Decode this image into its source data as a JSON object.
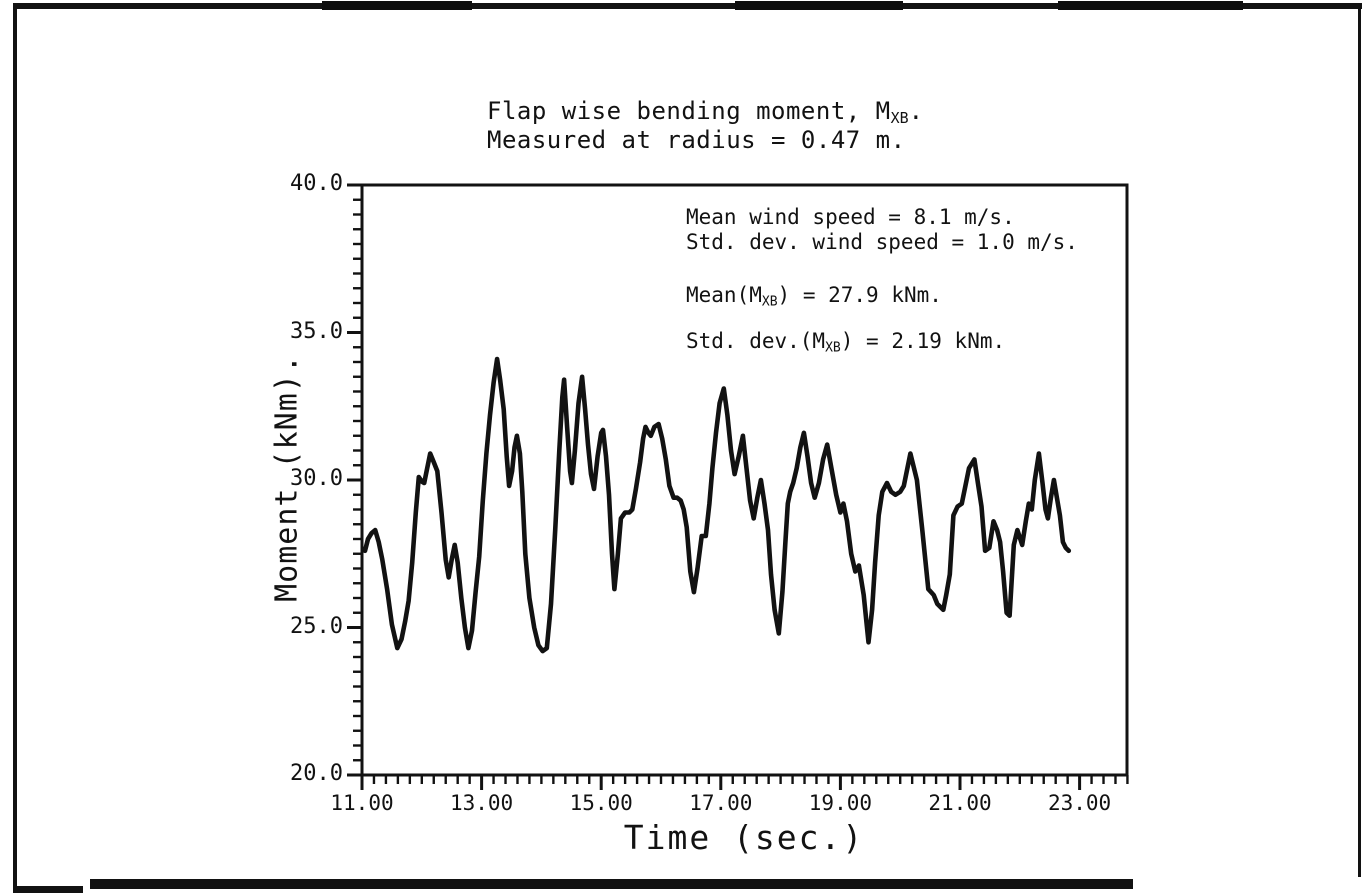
{
  "page": {
    "background": "#ffffff",
    "ink": "#121212"
  },
  "title": {
    "line1_pre": "Flap wise bending moment, M",
    "line1_sub": "XB",
    "line1_post": ".",
    "line2": "Measured at radius = 0.47 m."
  },
  "annotations": {
    "wind_mean": "Mean wind speed = 8.1 m/s.",
    "wind_std": "Std. dev. wind speed = 1.0 m/s.",
    "moment_mean_pre": "Mean(M",
    "moment_mean_sub": "XB",
    "moment_mean_post": ") = 27.9 kNm.",
    "moment_std_pre": "Std. dev.(M",
    "moment_std_sub": "XB",
    "moment_std_post": ") = 2.19 kNm."
  },
  "axes": {
    "x_label": "Time (sec.)",
    "y_label": "Moment (kNm).",
    "x_ticks": [
      {
        "v": 11,
        "label": "11.00"
      },
      {
        "v": 13,
        "label": "13.00"
      },
      {
        "v": 15,
        "label": "15.00"
      },
      {
        "v": 17,
        "label": "17.00"
      },
      {
        "v": 19,
        "label": "19.00"
      },
      {
        "v": 21,
        "label": "21.00"
      },
      {
        "v": 23,
        "label": "23.00"
      }
    ],
    "y_ticks": [
      {
        "v": 20,
        "label": "20.0"
      },
      {
        "v": 25,
        "label": "25.0"
      },
      {
        "v": 30,
        "label": "30.0"
      },
      {
        "v": 35,
        "label": "35.0"
      },
      {
        "v": 40,
        "label": "40.0"
      }
    ]
  },
  "chart_data": {
    "type": "line",
    "title": "Flap wise bending moment, MXB. Measured at radius = 0.47 m.",
    "xlabel": "Time (sec.)",
    "ylabel": "Moment (kNm).",
    "xlim": [
      11.0,
      23.8
    ],
    "ylim": [
      20.0,
      40.0
    ],
    "x_major_tick_step": 2.0,
    "x_minor_tick_step": 0.2,
    "y_major_tick_step": 5.0,
    "y_minor_tick_step": 0.5,
    "grid": false,
    "legend": null,
    "stats": {
      "mean_wind_speed_ms": 8.1,
      "std_dev_wind_speed_ms": 1.0,
      "mean_moment_kNm": 27.9,
      "std_dev_moment_kNm": 2.19
    },
    "series": [
      {
        "name": "MXB flapwise bending moment",
        "points": [
          [
            11.05,
            27.6
          ],
          [
            11.1,
            28.0
          ],
          [
            11.16,
            28.2
          ],
          [
            11.22,
            28.3
          ],
          [
            11.28,
            27.9
          ],
          [
            11.34,
            27.3
          ],
          [
            11.42,
            26.3
          ],
          [
            11.5,
            25.1
          ],
          [
            11.59,
            24.3
          ],
          [
            11.66,
            24.6
          ],
          [
            11.72,
            25.2
          ],
          [
            11.78,
            25.9
          ],
          [
            11.84,
            27.2
          ],
          [
            11.9,
            28.9
          ],
          [
            11.95,
            30.1
          ],
          [
            12.0,
            29.95
          ],
          [
            12.04,
            29.9
          ],
          [
            12.09,
            30.4
          ],
          [
            12.14,
            30.9
          ],
          [
            12.2,
            30.6
          ],
          [
            12.26,
            30.3
          ],
          [
            12.33,
            28.9
          ],
          [
            12.4,
            27.3
          ],
          [
            12.45,
            26.7
          ],
          [
            12.5,
            27.3
          ],
          [
            12.55,
            27.8
          ],
          [
            12.6,
            27.2
          ],
          [
            12.66,
            26.0
          ],
          [
            12.72,
            25.0
          ],
          [
            12.78,
            24.3
          ],
          [
            12.84,
            24.9
          ],
          [
            12.9,
            26.2
          ],
          [
            12.96,
            27.4
          ],
          [
            13.02,
            29.3
          ],
          [
            13.08,
            30.9
          ],
          [
            13.14,
            32.2
          ],
          [
            13.2,
            33.3
          ],
          [
            13.26,
            34.1
          ],
          [
            13.31,
            33.4
          ],
          [
            13.37,
            32.4
          ],
          [
            13.42,
            30.8
          ],
          [
            13.46,
            29.8
          ],
          [
            13.51,
            30.3
          ],
          [
            13.55,
            31.1
          ],
          [
            13.59,
            31.5
          ],
          [
            13.64,
            30.9
          ],
          [
            13.68,
            29.6
          ],
          [
            13.73,
            27.5
          ],
          [
            13.8,
            26.0
          ],
          [
            13.88,
            25.0
          ],
          [
            13.95,
            24.4
          ],
          [
            14.02,
            24.2
          ],
          [
            14.09,
            24.3
          ],
          [
            14.16,
            25.8
          ],
          [
            14.23,
            28.3
          ],
          [
            14.3,
            31.0
          ],
          [
            14.35,
            32.8
          ],
          [
            14.38,
            33.4
          ],
          [
            14.43,
            31.8
          ],
          [
            14.48,
            30.3
          ],
          [
            14.51,
            29.9
          ],
          [
            14.56,
            31.0
          ],
          [
            14.62,
            32.6
          ],
          [
            14.68,
            33.5
          ],
          [
            14.73,
            32.4
          ],
          [
            14.78,
            31.2
          ],
          [
            14.83,
            30.2
          ],
          [
            14.88,
            29.7
          ],
          [
            14.94,
            30.8
          ],
          [
            15.0,
            31.6
          ],
          [
            15.03,
            31.7
          ],
          [
            15.08,
            30.8
          ],
          [
            15.13,
            29.5
          ],
          [
            15.18,
            27.5
          ],
          [
            15.22,
            26.3
          ],
          [
            15.28,
            27.5
          ],
          [
            15.33,
            28.7
          ],
          [
            15.4,
            28.9
          ],
          [
            15.47,
            28.9
          ],
          [
            15.52,
            29.0
          ],
          [
            15.58,
            29.7
          ],
          [
            15.65,
            30.6
          ],
          [
            15.7,
            31.4
          ],
          [
            15.74,
            31.8
          ],
          [
            15.79,
            31.6
          ],
          [
            15.83,
            31.5
          ],
          [
            15.89,
            31.8
          ],
          [
            15.96,
            31.9
          ],
          [
            16.02,
            31.4
          ],
          [
            16.08,
            30.7
          ],
          [
            16.14,
            29.8
          ],
          [
            16.21,
            29.4
          ],
          [
            16.27,
            29.4
          ],
          [
            16.33,
            29.3
          ],
          [
            16.38,
            29.0
          ],
          [
            16.43,
            28.4
          ],
          [
            16.49,
            26.9
          ],
          [
            16.55,
            26.2
          ],
          [
            16.61,
            27.0
          ],
          [
            16.68,
            28.1
          ],
          [
            16.75,
            28.1
          ],
          [
            16.81,
            29.2
          ],
          [
            16.86,
            30.4
          ],
          [
            16.92,
            31.6
          ],
          [
            16.98,
            32.6
          ],
          [
            17.05,
            33.1
          ],
          [
            17.11,
            32.2
          ],
          [
            17.17,
            31.0
          ],
          [
            17.23,
            30.2
          ],
          [
            17.3,
            30.8
          ],
          [
            17.37,
            31.5
          ],
          [
            17.43,
            30.4
          ],
          [
            17.49,
            29.3
          ],
          [
            17.55,
            28.7
          ],
          [
            17.61,
            29.4
          ],
          [
            17.67,
            30.0
          ],
          [
            17.73,
            29.2
          ],
          [
            17.79,
            28.3
          ],
          [
            17.84,
            26.8
          ],
          [
            17.9,
            25.6
          ],
          [
            17.97,
            24.8
          ],
          [
            18.03,
            26.2
          ],
          [
            18.08,
            27.9
          ],
          [
            18.12,
            29.2
          ],
          [
            18.16,
            29.6
          ],
          [
            18.21,
            29.9
          ],
          [
            18.27,
            30.4
          ],
          [
            18.33,
            31.1
          ],
          [
            18.39,
            31.6
          ],
          [
            18.45,
            30.8
          ],
          [
            18.51,
            29.9
          ],
          [
            18.57,
            29.4
          ],
          [
            18.64,
            29.9
          ],
          [
            18.71,
            30.7
          ],
          [
            18.78,
            31.2
          ],
          [
            18.85,
            30.4
          ],
          [
            18.93,
            29.5
          ],
          [
            19.0,
            28.9
          ],
          [
            19.05,
            29.2
          ],
          [
            19.11,
            28.6
          ],
          [
            19.18,
            27.5
          ],
          [
            19.25,
            26.9
          ],
          [
            19.31,
            27.1
          ],
          [
            19.39,
            26.1
          ],
          [
            19.47,
            24.5
          ],
          [
            19.53,
            25.6
          ],
          [
            19.58,
            27.2
          ],
          [
            19.64,
            28.8
          ],
          [
            19.7,
            29.6
          ],
          [
            19.78,
            29.9
          ],
          [
            19.85,
            29.6
          ],
          [
            19.92,
            29.5
          ],
          [
            20.0,
            29.6
          ],
          [
            20.06,
            29.8
          ],
          [
            20.12,
            30.4
          ],
          [
            20.17,
            30.9
          ],
          [
            20.23,
            30.4
          ],
          [
            20.28,
            30.0
          ],
          [
            20.37,
            28.3
          ],
          [
            20.47,
            26.3
          ],
          [
            20.56,
            26.1
          ],
          [
            20.62,
            25.8
          ],
          [
            20.67,
            25.7
          ],
          [
            20.72,
            25.6
          ],
          [
            20.77,
            26.1
          ],
          [
            20.83,
            26.8
          ],
          [
            20.89,
            28.8
          ],
          [
            20.96,
            29.1
          ],
          [
            21.03,
            29.2
          ],
          [
            21.09,
            29.8
          ],
          [
            21.15,
            30.4
          ],
          [
            21.24,
            30.7
          ],
          [
            21.3,
            29.9
          ],
          [
            21.36,
            29.1
          ],
          [
            21.42,
            27.6
          ],
          [
            21.49,
            27.7
          ],
          [
            21.56,
            28.6
          ],
          [
            21.62,
            28.3
          ],
          [
            21.67,
            27.9
          ],
          [
            21.72,
            26.9
          ],
          [
            21.78,
            25.5
          ],
          [
            21.83,
            25.4
          ],
          [
            21.9,
            27.8
          ],
          [
            21.96,
            28.3
          ],
          [
            22.04,
            27.8
          ],
          [
            22.1,
            28.6
          ],
          [
            22.15,
            29.2
          ],
          [
            22.2,
            29.0
          ],
          [
            22.25,
            30.0
          ],
          [
            22.32,
            30.9
          ],
          [
            22.38,
            29.9
          ],
          [
            22.43,
            29.0
          ],
          [
            22.47,
            28.7
          ],
          [
            22.52,
            29.4
          ],
          [
            22.57,
            30.0
          ],
          [
            22.62,
            29.4
          ],
          [
            22.67,
            28.8
          ],
          [
            22.72,
            27.9
          ],
          [
            22.77,
            27.7
          ],
          [
            22.82,
            27.6
          ]
        ]
      }
    ]
  }
}
